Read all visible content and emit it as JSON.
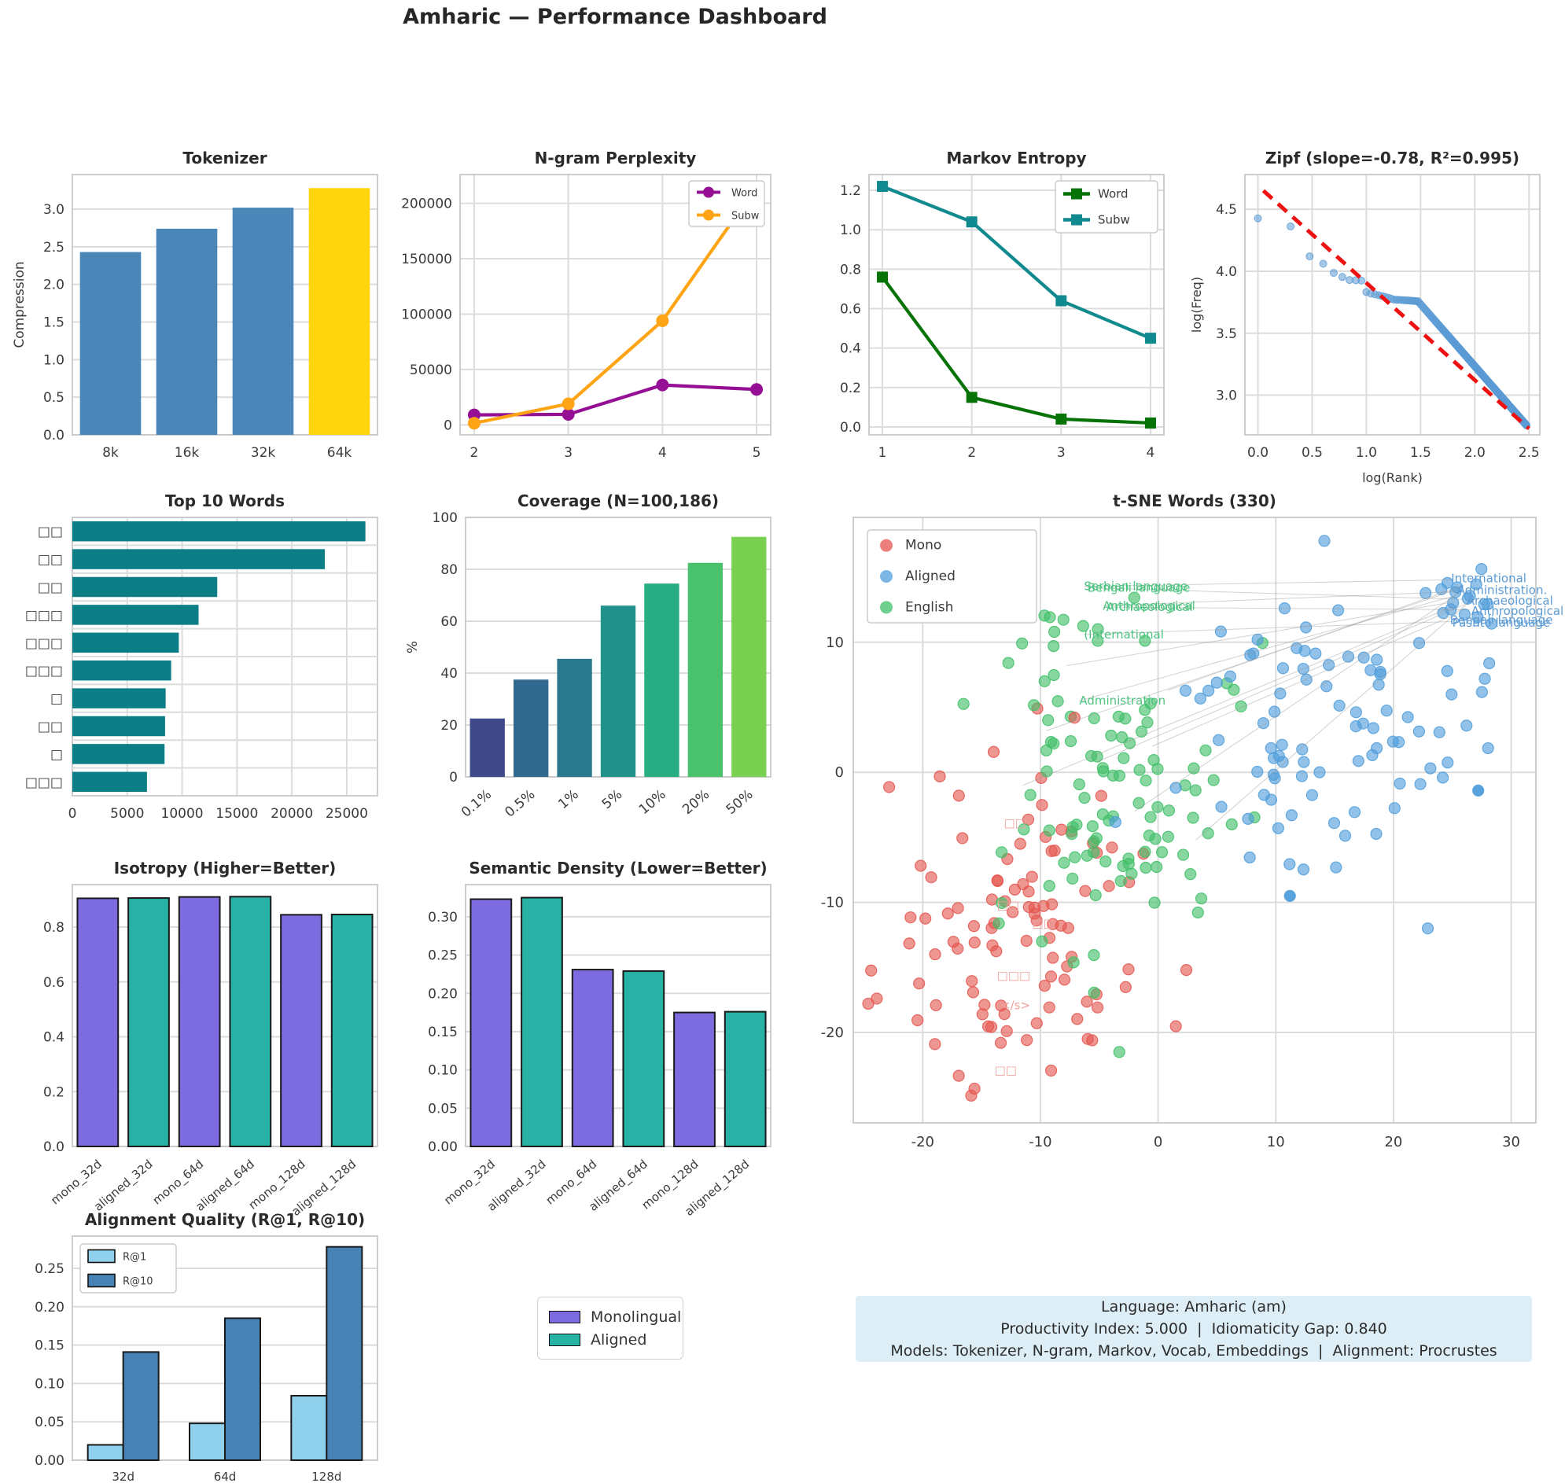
{
  "page": {
    "title": "Amharic — Performance Dashboard"
  },
  "info_box": {
    "bg": "#ddeef6",
    "lines": [
      "Language: Amharic (am)",
      "Productivity Index: 5.000  |  Idiomaticity Gap: 0.840",
      "Models: Tokenizer, N-gram, Markov, Vocab, Embeddings  |  Alignment: Procrustes"
    ]
  },
  "shared_legend": {
    "items": [
      {
        "label": "Monolingual",
        "color": "#7d6ce0"
      },
      {
        "label": "Aligned",
        "color": "#28b1a5"
      }
    ]
  },
  "chart_data": [
    {
      "id": "tokenizer",
      "type": "bar",
      "title": "Tokenizer",
      "ylabel": "Compression",
      "categories": [
        "8k",
        "16k",
        "32k",
        "64k"
      ],
      "values": [
        2.43,
        2.74,
        3.02,
        3.28
      ],
      "colors": [
        "#4a86b8",
        "#4a86b8",
        "#4a86b8",
        "#ffd60d"
      ],
      "yticks": [
        0.0,
        0.5,
        1.0,
        1.5,
        2.0,
        2.5,
        3.0
      ],
      "ytick_labels": [
        "0.0",
        "0.5",
        "1.0",
        "1.5",
        "2.0",
        "2.5",
        "3.0"
      ],
      "ylim": [
        0,
        3.46
      ]
    },
    {
      "id": "ngram",
      "type": "line",
      "title": "N-gram Perplexity",
      "x": [
        2,
        3,
        4,
        5
      ],
      "xtick_labels": [
        "2",
        "3",
        "4",
        "5"
      ],
      "series": [
        {
          "name": "Word",
          "color": "#940f94",
          "marker": "circle",
          "values": [
            9000,
            9500,
            36000,
            32000
          ]
        },
        {
          "name": "Subw",
          "color": "#ffa515",
          "marker": "circle",
          "values": [
            1500,
            19000,
            94000,
            215000
          ]
        }
      ],
      "yticks": [
        0,
        50000,
        100000,
        150000,
        200000
      ],
      "ytick_labels": [
        "0",
        "50000",
        "100000",
        "150000",
        "200000"
      ],
      "ylim": [
        -9000,
        226000
      ],
      "xlim": [
        1.85,
        5.15
      ],
      "legend_font": 13
    },
    {
      "id": "markov",
      "type": "line",
      "title": "Markov Entropy",
      "x": [
        1,
        2,
        3,
        4
      ],
      "xtick_labels": [
        "1",
        "2",
        "3",
        "4"
      ],
      "series": [
        {
          "name": "Word",
          "color": "#077307",
          "marker": "square",
          "values": [
            0.76,
            0.15,
            0.04,
            0.02
          ]
        },
        {
          "name": "Subw",
          "color": "#108a8e",
          "marker": "square",
          "values": [
            1.22,
            1.04,
            0.64,
            0.45
          ]
        }
      ],
      "yticks": [
        0.0,
        0.2,
        0.4,
        0.6,
        0.8,
        1.0,
        1.2
      ],
      "ytick_labels": [
        "0.0",
        "0.2",
        "0.4",
        "0.6",
        "0.8",
        "1.0",
        "1.2"
      ],
      "ylim": [
        -0.04,
        1.28
      ],
      "xlim": [
        0.85,
        4.15
      ],
      "legend_font": 15
    },
    {
      "id": "zipf",
      "type": "zipf",
      "title": "Zipf (slope=-0.78, R²=0.995)",
      "xlabel": "log(Rank)",
      "ylabel": "log(Freq)",
      "slope": -0.78,
      "r2": 0.995,
      "dot_color": "#5b9bd5",
      "fit_color": "#ee1111",
      "xticks": [
        0.0,
        0.5,
        1.0,
        1.5,
        2.0,
        2.5
      ],
      "xtick_labels": [
        "0.0",
        "0.5",
        "1.0",
        "1.5",
        "2.0",
        "2.5"
      ],
      "yticks": [
        3.0,
        3.5,
        4.0,
        4.5
      ],
      "ytick_labels": [
        "3.0",
        "3.5",
        "4.0",
        "4.5"
      ],
      "xlim": [
        -0.12,
        2.6
      ],
      "ylim": [
        2.68,
        4.78
      ],
      "fit_line": {
        "x": [
          0.05,
          2.5
        ],
        "y": [
          4.65,
          2.73
        ]
      },
      "points_model": {
        "n_ranks": 300,
        "top_freqs": [
          26700,
          23000,
          13200,
          11500,
          9700,
          9000,
          8500,
          8450,
          8400,
          6800
        ],
        "ramp": {
          "from": 11,
          "to": 17,
          "start": 6600,
          "step": -100
        },
        "plateau": {
          "from": 18,
          "to": 30,
          "start": 5900,
          "step": -15
        },
        "tail": {
          "ref_x": 1.4771,
          "ref_logf": 3.757,
          "slope": -1.0
        }
      }
    },
    {
      "id": "topwords",
      "type": "hbar",
      "title": "Top 10 Words",
      "categories": [
        "□□",
        "□□",
        "□□",
        "□□□",
        "□□□",
        "□□□",
        "□",
        "□□",
        "□",
        "□□□"
      ],
      "values": [
        26700,
        23000,
        13200,
        11500,
        9700,
        9000,
        8500,
        8450,
        8400,
        6800
      ],
      "color": "#0c7e86",
      "xticks": [
        0,
        5000,
        10000,
        15000,
        20000,
        25000
      ],
      "xtick_labels": [
        "0",
        "5000",
        "10000",
        "15000",
        "20000",
        "25000"
      ],
      "xlim": [
        0,
        27800
      ]
    },
    {
      "id": "coverage",
      "type": "bar",
      "title": "Coverage (N=100,186)",
      "ylabel": "%",
      "categories": [
        "0.1%",
        "0.5%",
        "1%",
        "5%",
        "10%",
        "20%",
        "50%"
      ],
      "values": [
        22.5,
        37.5,
        45.5,
        66,
        74.5,
        82.5,
        92.5
      ],
      "colors": [
        "#3f4889",
        "#31688e",
        "#2a788e",
        "#21918c",
        "#27ad81",
        "#4ac16d",
        "#7ad151"
      ],
      "yticks": [
        0,
        20,
        40,
        60,
        80,
        100
      ],
      "ytick_labels": [
        "0",
        "20",
        "40",
        "60",
        "80",
        "100"
      ],
      "ylim": [
        0,
        100
      ],
      "rotate_x": 40
    },
    {
      "id": "tsne",
      "type": "tsne",
      "title": "t-SNE Words (330)",
      "xticks": [
        -20,
        -10,
        0,
        10,
        20,
        30
      ],
      "xtick_labels": [
        "-20",
        "-10",
        "0",
        "10",
        "20",
        "30"
      ],
      "yticks": [
        -20,
        -10,
        0,
        10
      ],
      "ytick_labels": [
        "-20",
        "-10",
        "0",
        "10"
      ],
      "xlim": [
        -25.9,
        32.1
      ],
      "ylim": [
        -26.95,
        19.6
      ],
      "seed": 42,
      "legend": [
        {
          "label": "Mono",
          "color": "#e4564f"
        },
        {
          "label": "Aligned",
          "color": "#4f9ddb"
        },
        {
          "label": "English",
          "color": "#3fbf68"
        }
      ],
      "clusters": [
        {
          "group": "Mono",
          "color": "#e4564f",
          "n": 100,
          "cx": -13.5,
          "cy": -11.5,
          "sx": 5.6,
          "sy": 6.4
        },
        {
          "group": "English",
          "color": "#3fbf68",
          "n": 100,
          "cx": -3.2,
          "cy": -2.6,
          "sx": 5.3,
          "sy": 6.2
        },
        {
          "group": "English",
          "color": "#3fbf68",
          "n": 8,
          "cx": -6.5,
          "cy": 11.8,
          "sx": 2.8,
          "sy": 1.6
        },
        {
          "group": "Aligned",
          "color": "#4f9ddb",
          "n": 92,
          "cx": 14.5,
          "cy": 4.2,
          "sx": 6.6,
          "sy": 5.4
        },
        {
          "group": "Aligned",
          "color": "#4f9ddb",
          "n": 16,
          "cx": 25.8,
          "cy": 13.6,
          "sx": 1.4,
          "sy": 1.0
        }
      ],
      "extra_points": [
        {
          "color": "#e4564f",
          "x": 2.4,
          "y": -15.2
        },
        {
          "color": "#e4564f",
          "x": -5.6,
          "y": -20.6
        },
        {
          "color": "#e4564f",
          "x": -7.1,
          "y": 4.2
        },
        {
          "color": "#3fbf68",
          "x": -3.3,
          "y": -21.5
        },
        {
          "color": "#4f9ddb",
          "x": 27.2,
          "y": -1.4,
          "solid": true
        },
        {
          "color": "#4f9ddb",
          "x": 11.2,
          "y": -9.5,
          "solid": true
        }
      ],
      "annotations": {
        "green": {
          "color": "#4fc380",
          "labels": [
            {
              "t": "Serbian language",
              "x": -6.3,
              "y": 14.3
            },
            {
              "t": "Bengali language",
              "x": -6.0,
              "y": 14.2
            },
            {
              "t": "Anthropological",
              "x": -4.7,
              "y": 12.8
            },
            {
              "t": "Archaeological",
              "x": -4.4,
              "y": 12.7
            },
            {
              "t": "(International",
              "x": -6.3,
              "y": 10.6
            },
            {
              "t": "Administration",
              "x": -6.7,
              "y": 5.5
            }
          ]
        },
        "blue": {
          "color": "#5b9bd5",
          "labels": [
            {
              "t": "International",
              "x": 24.9,
              "y": 14.9
            },
            {
              "t": "Administration.",
              "x": 25.4,
              "y": 14.0
            },
            {
              "t": "Archaeological",
              "x": 26.2,
              "y": 13.2
            },
            {
              "t": "Anthropological",
              "x": 26.6,
              "y": 12.4
            },
            {
              "t": "Bengali language",
              "x": 24.8,
              "y": 11.7
            },
            {
              "t": "Pashto language",
              "x": 25.0,
              "y": 11.5
            }
          ]
        },
        "red": {
          "color": "#f0a29b",
          "labels": [
            {
              "t": "□□",
              "x": -13.1,
              "y": -3.9
            },
            {
              "t": "□□",
              "x": -13.7,
              "y": -10.2
            },
            {
              "t": "□□",
              "x": -10.7,
              "y": -11.6
            },
            {
              "t": "□□□",
              "x": -13.7,
              "y": -15.6
            },
            {
              "t": "</s>",
              "x": -13.4,
              "y": -17.9
            },
            {
              "t": "□□",
              "x": -13.9,
              "y": -22.9
            }
          ]
        }
      },
      "connectors": [
        [
          -6.3,
          14.3,
          25.0,
          14.8
        ],
        [
          -6.0,
          14.2,
          26.0,
          13.3
        ],
        [
          -4.7,
          12.8,
          25.5,
          13.9
        ],
        [
          -4.4,
          12.7,
          26.5,
          12.5
        ],
        [
          -6.3,
          10.6,
          25.0,
          11.6
        ],
        [
          -6.7,
          5.5,
          25.3,
          13.6
        ],
        [
          -9.5,
          3.2,
          25.8,
          14.2
        ],
        [
          -11.5,
          -1.0,
          25.2,
          12.8
        ],
        [
          -5.2,
          0.8,
          26.3,
          13.0
        ],
        [
          -2.0,
          -3.0,
          25.6,
          13.8
        ],
        [
          0.8,
          6.3,
          26.0,
          14.4
        ],
        [
          -0.5,
          2.0,
          25.4,
          12.2
        ],
        [
          3.2,
          -5.2,
          26.8,
          13.4
        ],
        [
          -7.8,
          8.2,
          25.1,
          13.1
        ]
      ]
    },
    {
      "id": "isotropy",
      "type": "bar",
      "title": "Isotropy (Higher=Better)",
      "categories": [
        "mono_32d",
        "aligned_32d",
        "mono_64d",
        "aligned_64d",
        "mono_128d",
        "aligned_128d"
      ],
      "values": [
        0.905,
        0.906,
        0.91,
        0.911,
        0.845,
        0.846
      ],
      "colors": [
        "#7d6ce0",
        "#28b1a5",
        "#7d6ce0",
        "#28b1a5",
        "#7d6ce0",
        "#28b1a5"
      ],
      "edge": "#1a1a1a",
      "yticks": [
        0.0,
        0.2,
        0.4,
        0.6,
        0.8
      ],
      "ytick_labels": [
        "0.0",
        "0.2",
        "0.4",
        "0.6",
        "0.8"
      ],
      "ylim": [
        0,
        0.955
      ],
      "rotate_x": 40,
      "xtick_font": 15
    },
    {
      "id": "density",
      "type": "bar",
      "title": "Semantic Density (Lower=Better)",
      "categories": [
        "mono_32d",
        "aligned_32d",
        "mono_64d",
        "aligned_64d",
        "mono_128d",
        "aligned_128d"
      ],
      "values": [
        0.323,
        0.325,
        0.231,
        0.229,
        0.175,
        0.176
      ],
      "colors": [
        "#7d6ce0",
        "#28b1a5",
        "#7d6ce0",
        "#28b1a5",
        "#7d6ce0",
        "#28b1a5"
      ],
      "edge": "#1a1a1a",
      "yticks": [
        0.0,
        0.05,
        0.1,
        0.15,
        0.2,
        0.25,
        0.3
      ],
      "ytick_labels": [
        "0.00",
        "0.05",
        "0.10",
        "0.15",
        "0.20",
        "0.25",
        "0.30"
      ],
      "ylim": [
        0,
        0.342
      ],
      "rotate_x": 40,
      "xtick_font": 15
    },
    {
      "id": "alignment",
      "type": "groupbar",
      "title": "Alignment Quality (R@1, R@10)",
      "categories": [
        "32d",
        "64d",
        "128d"
      ],
      "series": [
        {
          "name": "R@1",
          "color": "#8fd0ec",
          "values": [
            0.02,
            0.048,
            0.084
          ]
        },
        {
          "name": "R@10",
          "color": "#4682b4",
          "values": [
            0.141,
            0.185,
            0.278
          ]
        }
      ],
      "edge": "#1a1a1a",
      "yticks": [
        0.0,
        0.05,
        0.1,
        0.15,
        0.2,
        0.25
      ],
      "ytick_labels": [
        "0.00",
        "0.05",
        "0.10",
        "0.15",
        "0.20",
        "0.25"
      ],
      "ylim": [
        0,
        0.292
      ],
      "xtick_font": 15
    }
  ]
}
